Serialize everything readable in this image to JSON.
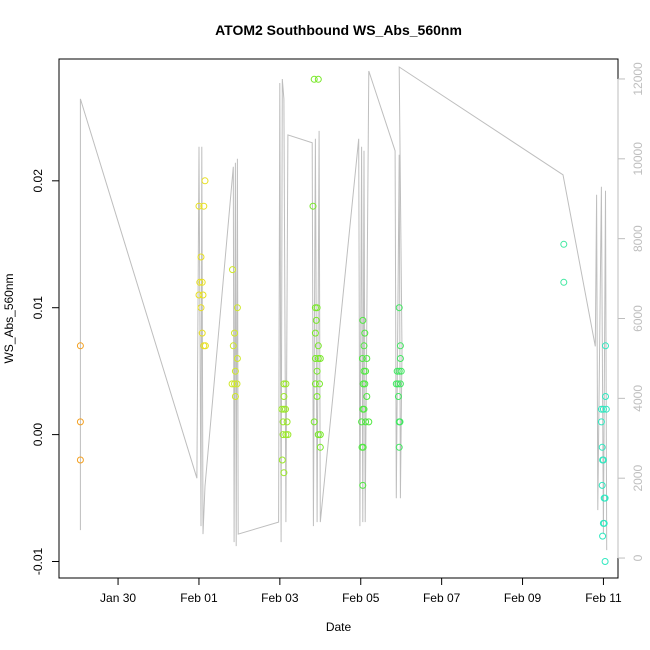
{
  "chart_data": {
    "type": "scatter",
    "title": "ATOM2 Southbound WS_Abs_560nm",
    "xlabel": "Date",
    "ylabel": "WS_Abs_560nm",
    "x_unit": "days (relative axis, Jan 30 = 0)",
    "xlim": [
      -1.46,
      12.36
    ],
    "ylim": [
      -0.0113,
      0.0296
    ],
    "x_ticks": [
      {
        "value": 0,
        "label": "Jan 30"
      },
      {
        "value": 2,
        "label": "Feb 01"
      },
      {
        "value": 4,
        "label": "Feb 03"
      },
      {
        "value": 6,
        "label": "Feb 05"
      },
      {
        "value": 8,
        "label": "Feb 07"
      },
      {
        "value": 10,
        "label": "Feb 09"
      },
      {
        "value": 12,
        "label": "Feb 11"
      }
    ],
    "y_ticks": [
      {
        "value": -0.01,
        "label": "-0.01"
      },
      {
        "value": 0.0,
        "label": "0.00"
      },
      {
        "value": 0.01,
        "label": "0.01"
      },
      {
        "value": 0.02,
        "label": "0.02"
      }
    ],
    "y2_ticks": [
      {
        "value": 0,
        "label": "0"
      },
      {
        "value": 2000,
        "label": "2000"
      },
      {
        "value": 4000,
        "label": "4000"
      },
      {
        "value": 6000,
        "label": "6000"
      },
      {
        "value": 8000,
        "label": "8000"
      },
      {
        "value": 10000,
        "label": "10000"
      },
      {
        "value": 12000,
        "label": "12000"
      }
    ],
    "y2lim": [
      -500,
      12500
    ],
    "points": [
      {
        "x": -0.93,
        "y": 0.007,
        "color": "#f4a020"
      },
      {
        "x": -0.93,
        "y": 0.001,
        "color": "#f4a020"
      },
      {
        "x": -0.93,
        "y": -0.002,
        "color": "#f4a020"
      },
      {
        "x": 2.0,
        "y": 0.018,
        "color": "#e8e020"
      },
      {
        "x": 2.12,
        "y": 0.018,
        "color": "#e8e020"
      },
      {
        "x": 2.15,
        "y": 0.02,
        "color": "#e8e020"
      },
      {
        "x": 2.05,
        "y": 0.014,
        "color": "#e8e020"
      },
      {
        "x": 2.02,
        "y": 0.012,
        "color": "#e8e020"
      },
      {
        "x": 2.08,
        "y": 0.012,
        "color": "#e8e020"
      },
      {
        "x": 2.0,
        "y": 0.011,
        "color": "#e8e020"
      },
      {
        "x": 2.1,
        "y": 0.011,
        "color": "#e8e020"
      },
      {
        "x": 2.05,
        "y": 0.01,
        "color": "#e8e020"
      },
      {
        "x": 2.08,
        "y": 0.008,
        "color": "#e8e020"
      },
      {
        "x": 2.12,
        "y": 0.007,
        "color": "#e8e020"
      },
      {
        "x": 2.16,
        "y": 0.007,
        "color": "#e8e020"
      },
      {
        "x": 2.83,
        "y": 0.013,
        "color": "#d0e828"
      },
      {
        "x": 2.95,
        "y": 0.01,
        "color": "#d0e828"
      },
      {
        "x": 2.88,
        "y": 0.008,
        "color": "#d0e828"
      },
      {
        "x": 2.85,
        "y": 0.007,
        "color": "#d0e828"
      },
      {
        "x": 2.95,
        "y": 0.006,
        "color": "#d0e828"
      },
      {
        "x": 2.9,
        "y": 0.005,
        "color": "#d0e828"
      },
      {
        "x": 2.82,
        "y": 0.004,
        "color": "#d0e828"
      },
      {
        "x": 2.88,
        "y": 0.004,
        "color": "#d0e828"
      },
      {
        "x": 2.94,
        "y": 0.004,
        "color": "#d0e828"
      },
      {
        "x": 2.9,
        "y": 0.003,
        "color": "#d0e828"
      },
      {
        "x": 4.1,
        "y": 0.004,
        "color": "#9ae828"
      },
      {
        "x": 4.15,
        "y": 0.004,
        "color": "#9ae828"
      },
      {
        "x": 4.1,
        "y": 0.003,
        "color": "#9ae828"
      },
      {
        "x": 4.05,
        "y": 0.002,
        "color": "#9ae828"
      },
      {
        "x": 4.1,
        "y": 0.002,
        "color": "#9ae828"
      },
      {
        "x": 4.14,
        "y": 0.002,
        "color": "#9ae828"
      },
      {
        "x": 4.08,
        "y": 0.001,
        "color": "#9ae828"
      },
      {
        "x": 4.18,
        "y": 0.001,
        "color": "#9ae828"
      },
      {
        "x": 4.08,
        "y": 0.0,
        "color": "#9ae828"
      },
      {
        "x": 4.15,
        "y": 0.0,
        "color": "#9ae828"
      },
      {
        "x": 4.2,
        "y": 0.0,
        "color": "#9ae828"
      },
      {
        "x": 4.06,
        "y": -0.002,
        "color": "#9ae828"
      },
      {
        "x": 4.1,
        "y": -0.003,
        "color": "#9ae828"
      },
      {
        "x": 4.85,
        "y": 0.028,
        "color": "#78e828"
      },
      {
        "x": 4.95,
        "y": 0.028,
        "color": "#78e828"
      },
      {
        "x": 4.82,
        "y": 0.018,
        "color": "#78e828"
      },
      {
        "x": 4.88,
        "y": 0.01,
        "color": "#78e828"
      },
      {
        "x": 4.92,
        "y": 0.01,
        "color": "#78e828"
      },
      {
        "x": 4.9,
        "y": 0.009,
        "color": "#78e828"
      },
      {
        "x": 4.88,
        "y": 0.008,
        "color": "#78e828"
      },
      {
        "x": 4.95,
        "y": 0.007,
        "color": "#78e828"
      },
      {
        "x": 4.88,
        "y": 0.006,
        "color": "#78e828"
      },
      {
        "x": 4.95,
        "y": 0.006,
        "color": "#78e828"
      },
      {
        "x": 5.0,
        "y": 0.006,
        "color": "#78e828"
      },
      {
        "x": 4.92,
        "y": 0.005,
        "color": "#78e828"
      },
      {
        "x": 4.88,
        "y": 0.004,
        "color": "#78e828"
      },
      {
        "x": 4.98,
        "y": 0.004,
        "color": "#78e828"
      },
      {
        "x": 4.92,
        "y": 0.003,
        "color": "#78e828"
      },
      {
        "x": 4.85,
        "y": 0.001,
        "color": "#78e828"
      },
      {
        "x": 4.95,
        "y": 0.0,
        "color": "#78e828"
      },
      {
        "x": 5.0,
        "y": 0.0,
        "color": "#78e828"
      },
      {
        "x": 5.0,
        "y": -0.001,
        "color": "#78e828"
      },
      {
        "x": 6.05,
        "y": 0.009,
        "color": "#50e840"
      },
      {
        "x": 6.1,
        "y": 0.008,
        "color": "#50e840"
      },
      {
        "x": 6.08,
        "y": 0.007,
        "color": "#50e840"
      },
      {
        "x": 6.04,
        "y": 0.006,
        "color": "#50e840"
      },
      {
        "x": 6.15,
        "y": 0.006,
        "color": "#50e840"
      },
      {
        "x": 6.08,
        "y": 0.005,
        "color": "#50e840"
      },
      {
        "x": 6.12,
        "y": 0.005,
        "color": "#50e840"
      },
      {
        "x": 6.06,
        "y": 0.004,
        "color": "#50e840"
      },
      {
        "x": 6.1,
        "y": 0.004,
        "color": "#50e840"
      },
      {
        "x": 6.15,
        "y": 0.003,
        "color": "#50e840"
      },
      {
        "x": 6.05,
        "y": 0.002,
        "color": "#50e840"
      },
      {
        "x": 6.08,
        "y": 0.002,
        "color": "#50e840"
      },
      {
        "x": 6.02,
        "y": 0.001,
        "color": "#50e840"
      },
      {
        "x": 6.12,
        "y": 0.001,
        "color": "#50e840"
      },
      {
        "x": 6.2,
        "y": 0.001,
        "color": "#50e840"
      },
      {
        "x": 6.03,
        "y": -0.001,
        "color": "#50e840"
      },
      {
        "x": 6.06,
        "y": -0.001,
        "color": "#50e840"
      },
      {
        "x": 6.05,
        "y": -0.004,
        "color": "#50e840"
      },
      {
        "x": 6.95,
        "y": 0.01,
        "color": "#40e860"
      },
      {
        "x": 6.98,
        "y": 0.007,
        "color": "#40e860"
      },
      {
        "x": 6.98,
        "y": 0.006,
        "color": "#40e860"
      },
      {
        "x": 6.9,
        "y": 0.005,
        "color": "#40e860"
      },
      {
        "x": 6.95,
        "y": 0.005,
        "color": "#40e860"
      },
      {
        "x": 7.0,
        "y": 0.005,
        "color": "#40e860"
      },
      {
        "x": 6.88,
        "y": 0.004,
        "color": "#40e860"
      },
      {
        "x": 6.92,
        "y": 0.004,
        "color": "#40e860"
      },
      {
        "x": 6.98,
        "y": 0.004,
        "color": "#40e860"
      },
      {
        "x": 6.93,
        "y": 0.003,
        "color": "#40e860"
      },
      {
        "x": 6.95,
        "y": 0.001,
        "color": "#40e860"
      },
      {
        "x": 6.97,
        "y": 0.001,
        "color": "#40e860"
      },
      {
        "x": 6.95,
        "y": -0.001,
        "color": "#40e860"
      },
      {
        "x": 11.02,
        "y": 0.015,
        "color": "#40e8a0"
      },
      {
        "x": 11.02,
        "y": 0.012,
        "color": "#40e8a0"
      },
      {
        "x": 11.95,
        "y": 0.002,
        "color": "#30e8c0"
      },
      {
        "x": 12.0,
        "y": 0.002,
        "color": "#30e8c0"
      },
      {
        "x": 11.95,
        "y": 0.001,
        "color": "#30e8c0"
      },
      {
        "x": 11.97,
        "y": -0.001,
        "color": "#30e8c0"
      },
      {
        "x": 11.98,
        "y": -0.002,
        "color": "#30e8c0"
      },
      {
        "x": 12.0,
        "y": -0.002,
        "color": "#30e8c0"
      },
      {
        "x": 11.97,
        "y": -0.004,
        "color": "#30e8c0"
      },
      {
        "x": 12.02,
        "y": -0.005,
        "color": "#30e8c0"
      },
      {
        "x": 12.04,
        "y": -0.005,
        "color": "#30e8c0"
      },
      {
        "x": 12.0,
        "y": -0.007,
        "color": "#30e8c0"
      },
      {
        "x": 12.02,
        "y": -0.007,
        "color": "#30e8c0"
      },
      {
        "x": 11.98,
        "y": -0.008,
        "color": "#30e8c0"
      },
      {
        "x": 12.04,
        "y": -0.01,
        "color": "#30e8c0"
      },
      {
        "x": 12.05,
        "y": 0.003,
        "color": "#30e8c0"
      },
      {
        "x": 12.07,
        "y": 0.002,
        "color": "#30e8c0"
      },
      {
        "x": 12.05,
        "y": 0.007,
        "color": "#30e8c0"
      }
    ],
    "secondary_series": {
      "axis": "right",
      "color": "#bebebe",
      "points": [
        [
          -0.93,
          700
        ],
        [
          -0.93,
          11500
        ],
        [
          1.95,
          2000
        ],
        [
          2.0,
          10300
        ],
        [
          2.05,
          800
        ],
        [
          2.07,
          10300
        ],
        [
          2.1,
          600
        ],
        [
          2.15,
          1800
        ],
        [
          2.85,
          9800
        ],
        [
          2.87,
          400
        ],
        [
          2.9,
          9900
        ],
        [
          2.92,
          300
        ],
        [
          2.95,
          10000
        ],
        [
          2.97,
          600
        ],
        [
          3.97,
          900
        ],
        [
          4.0,
          11900
        ],
        [
          4.03,
          400
        ],
        [
          4.06,
          12000
        ],
        [
          4.1,
          11500
        ],
        [
          4.15,
          900
        ],
        [
          4.2,
          10600
        ],
        [
          4.8,
          10400
        ],
        [
          4.83,
          800
        ],
        [
          4.88,
          10500
        ],
        [
          4.92,
          900
        ],
        [
          4.97,
          10700
        ],
        [
          5.0,
          900
        ],
        [
          5.95,
          10500
        ],
        [
          5.98,
          800
        ],
        [
          6.02,
          10300
        ],
        [
          6.05,
          900
        ],
        [
          6.08,
          10200
        ],
        [
          6.11,
          900
        ],
        [
          6.2,
          12200
        ],
        [
          6.85,
          10200
        ],
        [
          6.88,
          1500
        ],
        [
          6.95,
          10100
        ],
        [
          6.98,
          1500
        ],
        [
          7.02,
          5200
        ],
        [
          6.95,
          12300
        ],
        [
          11.0,
          9600
        ],
        [
          11.8,
          5300
        ],
        [
          11.83,
          9100
        ],
        [
          11.86,
          1200
        ],
        [
          11.95,
          9300
        ],
        [
          12.0,
          600
        ],
        [
          12.05,
          9200
        ],
        [
          12.08,
          200
        ]
      ]
    }
  }
}
